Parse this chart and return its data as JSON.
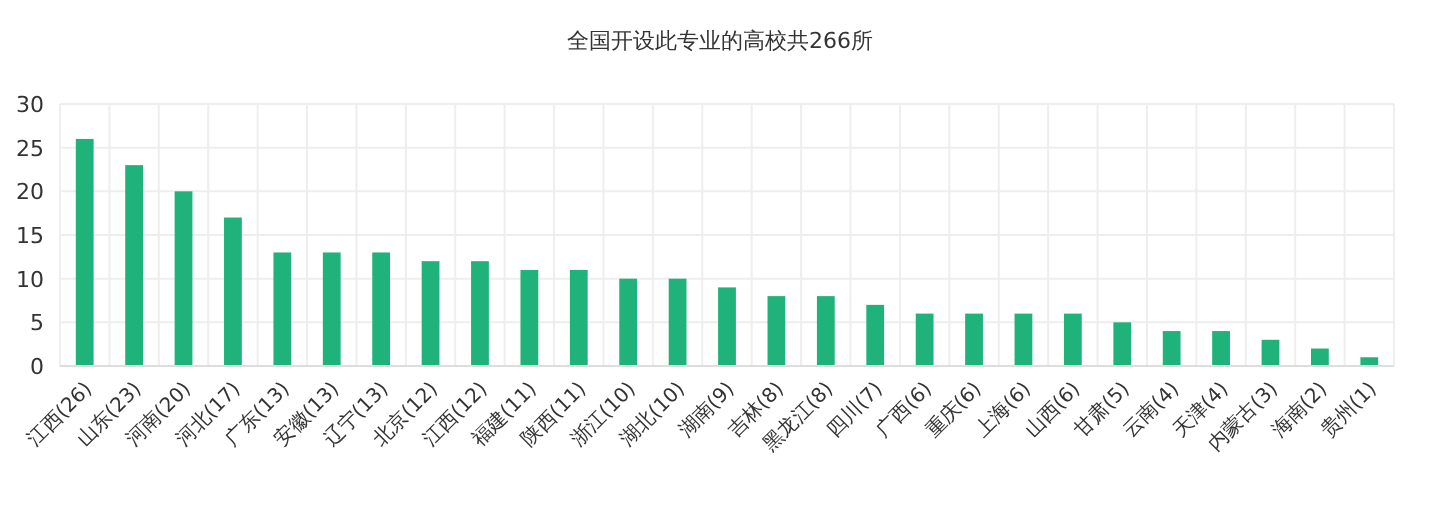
{
  "chart_data": {
    "type": "bar",
    "title": "全国开设此专业的高校共266所",
    "categories": [
      "江西(26)",
      "山东(23)",
      "河南(20)",
      "河北(17)",
      "广东(13)",
      "安徽(13)",
      "辽宁(13)",
      "北京(12)",
      "江西(12)",
      "福建(11)",
      "陕西(11)",
      "浙江(10)",
      "湖北(10)",
      "湖南(9)",
      "吉林(8)",
      "黑龙江(8)",
      "四川(7)",
      "广西(6)",
      "重庆(6)",
      "上海(6)",
      "山西(6)",
      "甘肃(5)",
      "云南(4)",
      "天津(4)",
      "内蒙古(3)",
      "海南(2)",
      "贵州(1)"
    ],
    "values": [
      26,
      23,
      20,
      17,
      13,
      13,
      13,
      12,
      12,
      11,
      11,
      10,
      10,
      9,
      8,
      8,
      7,
      6,
      6,
      6,
      6,
      5,
      4,
      4,
      3,
      2,
      1
    ],
    "color": "#1fb27a",
    "ylim": [
      0,
      30
    ],
    "yticks": [
      0,
      5,
      10,
      15,
      20,
      25,
      30
    ],
    "grid": true
  }
}
